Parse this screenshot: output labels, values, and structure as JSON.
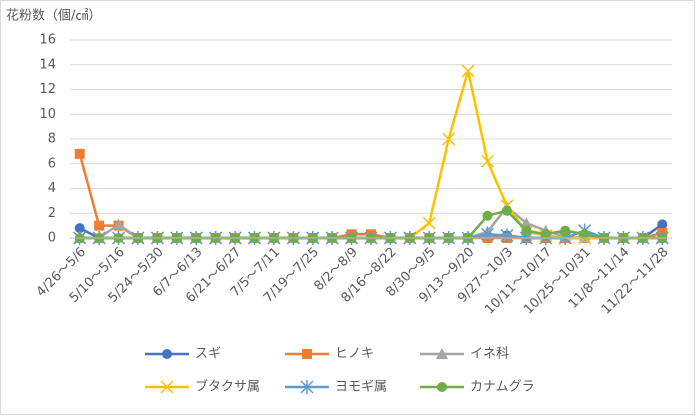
{
  "chart_data": {
    "type": "line",
    "y_label": "花粉数（個/㎠）",
    "categories": [
      "4/26～5/6",
      null,
      "5/10～5/16",
      null,
      "5/24～5/30",
      null,
      "6/7～6/13",
      null,
      "6/21～6/27",
      null,
      "7/5～7/11",
      null,
      "7/19～7/25",
      null,
      "8/2～8/9",
      null,
      "8/16～8/22",
      null,
      "8/30～9/5",
      null,
      "9/13～9/20",
      null,
      "9/27～10/3",
      null,
      "10/11～10/17",
      null,
      "10/25～10/31",
      null,
      "11/8～11/14",
      null,
      "11/22～11/28"
    ],
    "series": [
      {
        "name": "スギ",
        "color": "#4472c4",
        "marker": "circle",
        "values": [
          0.8,
          0,
          0,
          0,
          0,
          0,
          0,
          0,
          0,
          0,
          0,
          0,
          0,
          0,
          0,
          0,
          0,
          0,
          0,
          0,
          0,
          0.2,
          0.2,
          0,
          0,
          0,
          0,
          0,
          0,
          0,
          1.1
        ]
      },
      {
        "name": "ヒノキ",
        "color": "#ed7d31",
        "marker": "square",
        "values": [
          6.8,
          1.0,
          1.0,
          0,
          0,
          0,
          0,
          0,
          0,
          0,
          0,
          0,
          0,
          0,
          0.3,
          0.3,
          0,
          0,
          0,
          0,
          0,
          0,
          0,
          0,
          0,
          0,
          0,
          0,
          0,
          0,
          0.4
        ]
      },
      {
        "name": "イネ科",
        "color": "#a5a5a5",
        "marker": "triangle",
        "values": [
          0,
          0,
          1.1,
          0,
          0,
          0,
          0,
          0,
          0,
          0,
          0,
          0,
          0,
          0,
          0,
          0,
          0,
          0,
          0,
          0,
          0,
          0.5,
          2.5,
          1.2,
          0.6,
          0.1,
          0,
          0,
          0,
          0,
          0
        ]
      },
      {
        "name": "ブタクサ属",
        "color": "#ffc000",
        "marker": "x",
        "values": [
          0,
          0,
          0,
          0,
          0,
          0,
          0,
          0,
          0,
          0,
          0,
          0,
          0,
          0,
          0,
          0,
          0,
          0,
          1.2,
          8.0,
          13.5,
          6.2,
          2.6,
          0.5,
          0.2,
          0,
          0,
          0,
          0,
          0,
          0
        ]
      },
      {
        "name": "ヨモギ属",
        "color": "#5b9bd5",
        "marker": "star",
        "values": [
          0,
          0,
          0,
          0,
          0,
          0,
          0,
          0,
          0,
          0,
          0,
          0,
          0,
          0,
          0,
          0,
          0,
          0,
          0,
          0,
          0,
          0.3,
          0.2,
          0,
          0,
          0,
          0.6,
          0,
          0,
          0,
          0
        ]
      },
      {
        "name": "カナムグラ",
        "color": "#70ad47",
        "marker": "circle",
        "values": [
          0,
          0,
          0,
          0,
          0,
          0,
          0,
          0,
          0,
          0,
          0,
          0,
          0,
          0,
          0,
          0,
          0,
          0,
          0,
          0,
          0,
          1.8,
          2.2,
          0.6,
          0.3,
          0.6,
          0.3,
          0,
          0,
          0,
          0
        ]
      }
    ],
    "ylim": [
      0,
      16
    ],
    "yticks": [
      0,
      2,
      4,
      6,
      8,
      10,
      12,
      14,
      16
    ],
    "grid": true
  }
}
